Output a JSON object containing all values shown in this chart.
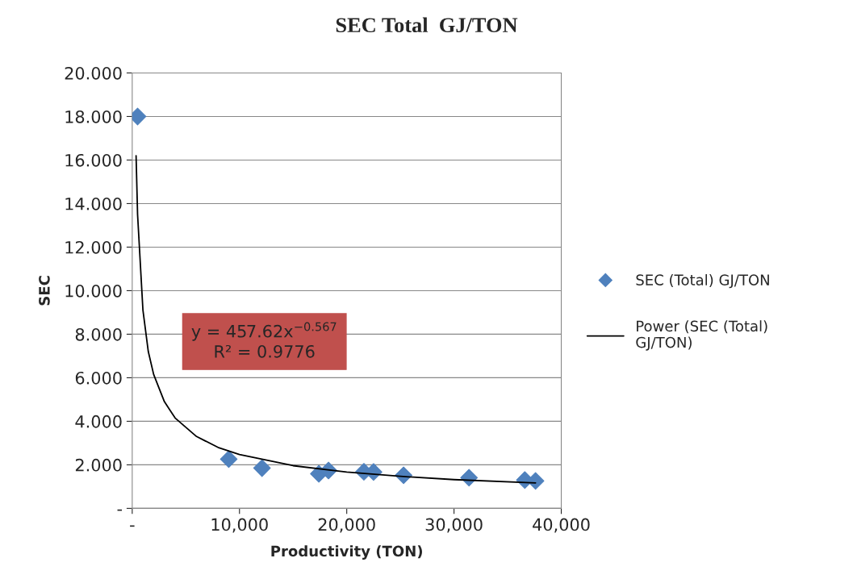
{
  "chart_data": {
    "type": "scatter",
    "title": "SEC Total  GJ/TON",
    "xlabel": "Productivity (TON)",
    "ylabel": "SEC",
    "xlim": [
      0,
      40000
    ],
    "ylim": [
      0,
      20
    ],
    "xticks": [
      {
        "value": 0,
        "label": "-"
      },
      {
        "value": 10000,
        "label": "10,000"
      },
      {
        "value": 20000,
        "label": "20,000"
      },
      {
        "value": 30000,
        "label": "30,000"
      },
      {
        "value": 40000,
        "label": "40,000"
      }
    ],
    "yticks": [
      {
        "value": 0,
        "label": "-"
      },
      {
        "value": 2,
        "label": "2.000"
      },
      {
        "value": 4,
        "label": "4.000"
      },
      {
        "value": 6,
        "label": "6.000"
      },
      {
        "value": 8,
        "label": "8.000"
      },
      {
        "value": 10,
        "label": "10.000"
      },
      {
        "value": 12,
        "label": "12.000"
      },
      {
        "value": 14,
        "label": "14.000"
      },
      {
        "value": 16,
        "label": "16.000"
      },
      {
        "value": 18,
        "label": "18.000"
      },
      {
        "value": 20,
        "label": "20.000"
      }
    ],
    "grid": "y",
    "legend": "right",
    "series": [
      {
        "name": "SEC (Total) GJ/TON",
        "marker": "diamond",
        "color": "#4f81bd",
        "x": [
          500,
          9000,
          12100,
          17400,
          18300,
          21600,
          22500,
          25300,
          31400,
          36600,
          37600
        ],
        "values": [
          18.0,
          2.26,
          1.85,
          1.59,
          1.74,
          1.68,
          1.67,
          1.52,
          1.41,
          1.3,
          1.26
        ]
      },
      {
        "name": "Power (SEC (Total) GJ/TON)",
        "type": "line",
        "color": "#000000",
        "x": [
          360,
          500,
          1000,
          1500,
          2000,
          3000,
          4000,
          6000,
          8000,
          10000,
          15000,
          20000,
          25000,
          30000,
          37600
        ],
        "values": [
          16.2,
          13.5,
          9.1,
          7.2,
          6.15,
          4.9,
          4.15,
          3.3,
          2.8,
          2.47,
          1.96,
          1.67,
          1.47,
          1.32,
          1.17
        ]
      }
    ],
    "annotations": [
      "y = 457.62x$^{−0.567}$",
      "R² = 0.9776"
    ]
  }
}
